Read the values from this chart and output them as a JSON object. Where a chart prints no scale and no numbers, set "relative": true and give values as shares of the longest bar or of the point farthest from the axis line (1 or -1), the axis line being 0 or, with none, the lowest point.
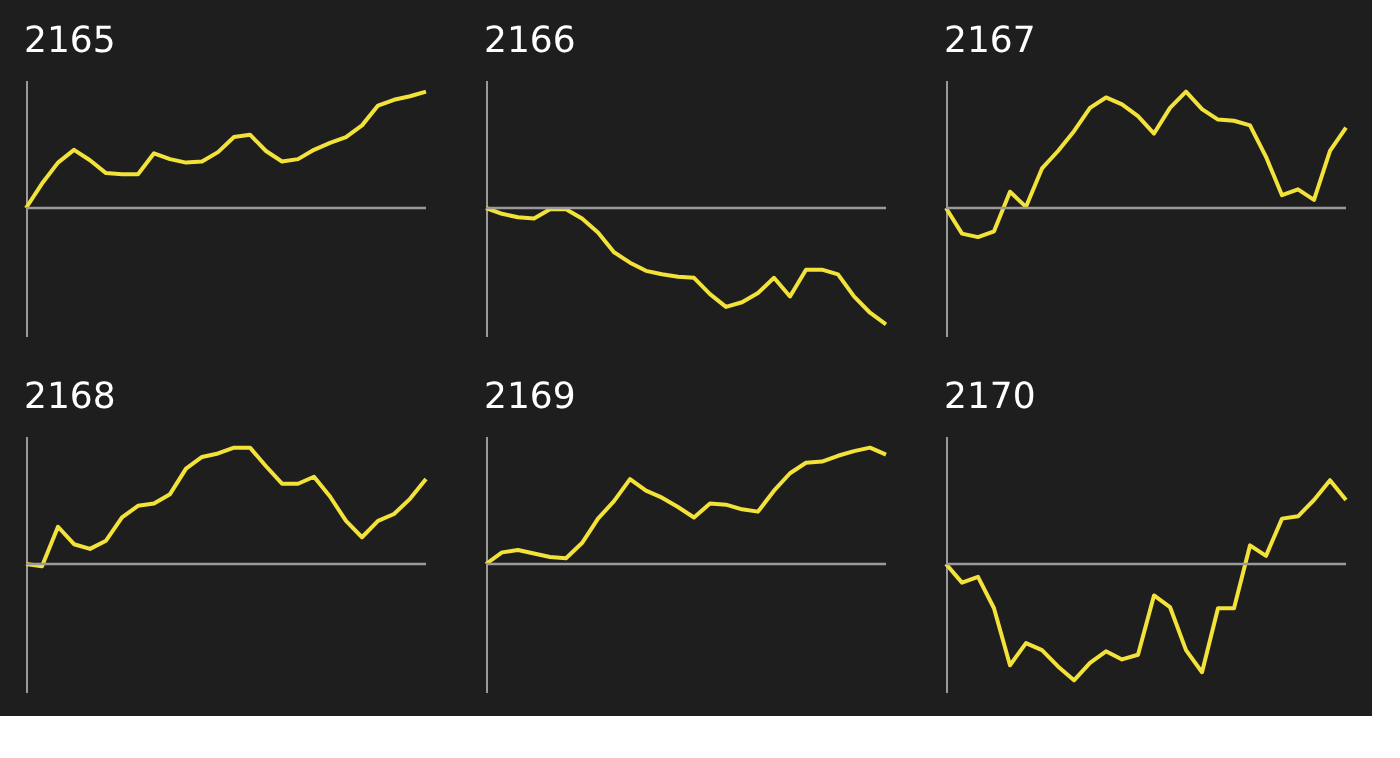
{
  "chart_data": [
    {
      "type": "line",
      "title": "2165",
      "relative": true,
      "tick_labels": false,
      "categories": [
        null,
        null,
        null,
        null,
        null,
        null,
        null,
        null,
        null,
        null,
        null,
        null,
        null,
        null,
        null,
        null,
        null,
        null,
        null,
        null,
        null,
        null,
        null,
        null,
        null,
        null
      ],
      "series": [
        {
          "color": "#f2e23a",
          "values": [
            0,
            0.21,
            0.39,
            0.5,
            0.41,
            0.3,
            0.29,
            0.29,
            0.47,
            0.42,
            0.39,
            0.4,
            0.48,
            0.61,
            0.63,
            0.49,
            0.4,
            0.42,
            0.5,
            0.56,
            0.61,
            0.71,
            0.88,
            0.93,
            0.96,
            1.0
          ]
        }
      ]
    },
    {
      "type": "line",
      "title": "2166",
      "relative": true,
      "tick_labels": false,
      "categories": [
        null,
        null,
        null,
        null,
        null,
        null,
        null,
        null,
        null,
        null,
        null,
        null,
        null,
        null,
        null,
        null,
        null,
        null,
        null,
        null,
        null,
        null,
        null,
        null,
        null,
        null
      ],
      "series": [
        {
          "color": "#f2e23a",
          "values": [
            0,
            -0.05,
            -0.08,
            -0.09,
            -0.01,
            -0.01,
            -0.09,
            -0.21,
            -0.38,
            -0.47,
            -0.54,
            -0.57,
            -0.59,
            -0.6,
            -0.74,
            -0.85,
            -0.81,
            -0.73,
            -0.6,
            -0.76,
            -0.53,
            -0.53,
            -0.57,
            -0.76,
            -0.9,
            -1.0
          ]
        }
      ]
    },
    {
      "type": "line",
      "title": "2167",
      "relative": true,
      "tick_labels": false,
      "categories": [
        null,
        null,
        null,
        null,
        null,
        null,
        null,
        null,
        null,
        null,
        null,
        null,
        null,
        null,
        null,
        null,
        null,
        null,
        null,
        null,
        null,
        null,
        null,
        null,
        null,
        null
      ],
      "series": [
        {
          "color": "#f2e23a",
          "values": [
            0,
            -0.22,
            -0.25,
            -0.2,
            0.14,
            0.01,
            0.34,
            0.49,
            0.66,
            0.86,
            0.95,
            0.89,
            0.79,
            0.64,
            0.86,
            1.0,
            0.85,
            0.76,
            0.75,
            0.71,
            0.44,
            0.11,
            0.16,
            0.07,
            0.49,
            0.69
          ]
        }
      ]
    },
    {
      "type": "line",
      "title": "2168",
      "relative": true,
      "tick_labels": false,
      "categories": [
        null,
        null,
        null,
        null,
        null,
        null,
        null,
        null,
        null,
        null,
        null,
        null,
        null,
        null,
        null,
        null,
        null,
        null,
        null,
        null,
        null,
        null,
        null,
        null,
        null,
        null
      ],
      "series": [
        {
          "color": "#f2e23a",
          "values": [
            0,
            -0.02,
            0.32,
            0.17,
            0.13,
            0.2,
            0.4,
            0.5,
            0.52,
            0.6,
            0.82,
            0.92,
            0.95,
            1.0,
            1.0,
            0.84,
            0.69,
            0.69,
            0.75,
            0.58,
            0.37,
            0.23,
            0.37,
            0.43,
            0.56,
            0.73
          ]
        }
      ]
    },
    {
      "type": "line",
      "title": "2169",
      "relative": true,
      "tick_labels": false,
      "categories": [
        null,
        null,
        null,
        null,
        null,
        null,
        null,
        null,
        null,
        null,
        null,
        null,
        null,
        null,
        null,
        null,
        null,
        null,
        null,
        null,
        null,
        null,
        null,
        null,
        null,
        null
      ],
      "series": [
        {
          "color": "#f2e23a",
          "values": [
            0,
            0.1,
            0.12,
            0.09,
            0.06,
            0.05,
            0.18,
            0.39,
            0.54,
            0.73,
            0.63,
            0.57,
            0.49,
            0.4,
            0.52,
            0.51,
            0.47,
            0.45,
            0.63,
            0.78,
            0.87,
            0.88,
            0.93,
            0.97,
            1.0,
            0.94
          ]
        }
      ]
    },
    {
      "type": "line",
      "title": "2170",
      "relative": true,
      "tick_labels": false,
      "categories": [
        null,
        null,
        null,
        null,
        null,
        null,
        null,
        null,
        null,
        null,
        null,
        null,
        null,
        null,
        null,
        null,
        null,
        null,
        null,
        null,
        null,
        null,
        null,
        null,
        null,
        null
      ],
      "series": [
        {
          "color": "#f2e23a",
          "values": [
            0,
            -0.16,
            -0.11,
            -0.38,
            -0.87,
            -0.68,
            -0.74,
            -0.88,
            -1.0,
            -0.85,
            -0.75,
            -0.82,
            -0.78,
            -0.27,
            -0.37,
            -0.74,
            -0.93,
            -0.38,
            -0.38,
            0.16,
            0.07,
            0.39,
            0.41,
            0.55,
            0.72,
            0.55
          ]
        }
      ]
    }
  ]
}
